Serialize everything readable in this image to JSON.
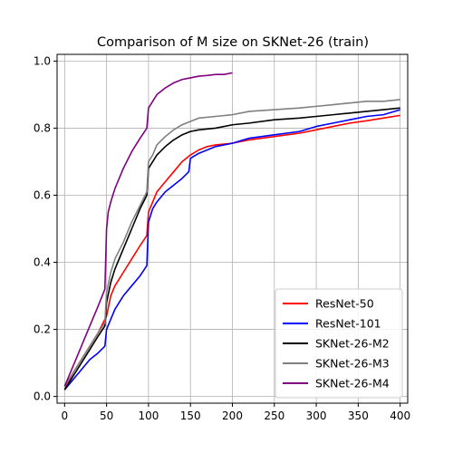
{
  "chart_data": {
    "type": "line",
    "title": "Comparison of M size on SKNet-26 (train)",
    "xlabel": "",
    "ylabel": "",
    "xlim": [
      -9,
      409
    ],
    "ylim": [
      -0.02,
      1.02
    ],
    "xticks": [
      0,
      50,
      100,
      150,
      200,
      250,
      300,
      350,
      400
    ],
    "yticks": [
      0.0,
      0.2,
      0.4,
      0.6,
      0.8,
      1.0
    ],
    "xtick_labels": [
      "0",
      "50",
      "100",
      "150",
      "200",
      "250",
      "300",
      "350",
      "400"
    ],
    "ytick_labels": [
      "0.0",
      "0.2",
      "0.4",
      "0.6",
      "0.8",
      "1.0"
    ],
    "grid": true,
    "legend_position": "lower-right",
    "series": [
      {
        "name": "ResNet-50",
        "color": "#ff0000",
        "points": [
          [
            0,
            0.02
          ],
          [
            10,
            0.07
          ],
          [
            20,
            0.11
          ],
          [
            30,
            0.15
          ],
          [
            40,
            0.19
          ],
          [
            50,
            0.24
          ],
          [
            55,
            0.3
          ],
          [
            60,
            0.33
          ],
          [
            70,
            0.37
          ],
          [
            80,
            0.41
          ],
          [
            90,
            0.45
          ],
          [
            98,
            0.48
          ],
          [
            100,
            0.55
          ],
          [
            105,
            0.58
          ],
          [
            110,
            0.61
          ],
          [
            120,
            0.64
          ],
          [
            130,
            0.67
          ],
          [
            140,
            0.7
          ],
          [
            150,
            0.72
          ],
          [
            160,
            0.735
          ],
          [
            170,
            0.745
          ],
          [
            180,
            0.75
          ],
          [
            200,
            0.755
          ],
          [
            220,
            0.765
          ],
          [
            250,
            0.775
          ],
          [
            280,
            0.785
          ],
          [
            300,
            0.795
          ],
          [
            320,
            0.805
          ],
          [
            340,
            0.815
          ],
          [
            360,
            0.822
          ],
          [
            380,
            0.83
          ],
          [
            400,
            0.838
          ]
        ]
      },
      {
        "name": "ResNet-101",
        "color": "#0000ff",
        "points": [
          [
            0,
            0.02
          ],
          [
            10,
            0.05
          ],
          [
            20,
            0.08
          ],
          [
            30,
            0.11
          ],
          [
            40,
            0.13
          ],
          [
            48,
            0.15
          ],
          [
            50,
            0.2
          ],
          [
            55,
            0.23
          ],
          [
            60,
            0.26
          ],
          [
            70,
            0.3
          ],
          [
            80,
            0.33
          ],
          [
            90,
            0.36
          ],
          [
            98,
            0.39
          ],
          [
            100,
            0.52
          ],
          [
            105,
            0.56
          ],
          [
            110,
            0.58
          ],
          [
            120,
            0.61
          ],
          [
            130,
            0.63
          ],
          [
            140,
            0.65
          ],
          [
            148,
            0.67
          ],
          [
            150,
            0.71
          ],
          [
            160,
            0.725
          ],
          [
            170,
            0.735
          ],
          [
            180,
            0.745
          ],
          [
            200,
            0.755
          ],
          [
            220,
            0.77
          ],
          [
            250,
            0.78
          ],
          [
            280,
            0.79
          ],
          [
            300,
            0.805
          ],
          [
            320,
            0.815
          ],
          [
            340,
            0.825
          ],
          [
            360,
            0.835
          ],
          [
            380,
            0.84
          ],
          [
            400,
            0.855
          ]
        ]
      },
      {
        "name": "SKNet-26-M2",
        "color": "#000000",
        "points": [
          [
            0,
            0.02
          ],
          [
            10,
            0.06
          ],
          [
            20,
            0.1
          ],
          [
            30,
            0.14
          ],
          [
            40,
            0.18
          ],
          [
            48,
            0.21
          ],
          [
            50,
            0.28
          ],
          [
            55,
            0.34
          ],
          [
            60,
            0.38
          ],
          [
            70,
            0.44
          ],
          [
            80,
            0.5
          ],
          [
            90,
            0.56
          ],
          [
            98,
            0.6
          ],
          [
            100,
            0.68
          ],
          [
            105,
            0.7
          ],
          [
            110,
            0.72
          ],
          [
            120,
            0.745
          ],
          [
            130,
            0.765
          ],
          [
            140,
            0.78
          ],
          [
            150,
            0.79
          ],
          [
            160,
            0.795
          ],
          [
            180,
            0.8
          ],
          [
            200,
            0.81
          ],
          [
            220,
            0.815
          ],
          [
            250,
            0.825
          ],
          [
            280,
            0.83
          ],
          [
            300,
            0.835
          ],
          [
            320,
            0.84
          ],
          [
            340,
            0.845
          ],
          [
            360,
            0.85
          ],
          [
            380,
            0.855
          ],
          [
            400,
            0.86
          ]
        ]
      },
      {
        "name": "SKNet-26-M3",
        "color": "#808080",
        "points": [
          [
            0,
            0.03
          ],
          [
            10,
            0.07
          ],
          [
            20,
            0.11
          ],
          [
            30,
            0.15
          ],
          [
            40,
            0.19
          ],
          [
            48,
            0.22
          ],
          [
            50,
            0.31
          ],
          [
            55,
            0.37
          ],
          [
            60,
            0.41
          ],
          [
            70,
            0.46
          ],
          [
            80,
            0.52
          ],
          [
            90,
            0.57
          ],
          [
            98,
            0.61
          ],
          [
            100,
            0.7
          ],
          [
            105,
            0.72
          ],
          [
            110,
            0.75
          ],
          [
            120,
            0.775
          ],
          [
            130,
            0.795
          ],
          [
            140,
            0.81
          ],
          [
            150,
            0.82
          ],
          [
            160,
            0.83
          ],
          [
            180,
            0.835
          ],
          [
            200,
            0.84
          ],
          [
            220,
            0.85
          ],
          [
            250,
            0.855
          ],
          [
            280,
            0.86
          ],
          [
            300,
            0.865
          ],
          [
            320,
            0.87
          ],
          [
            340,
            0.875
          ],
          [
            360,
            0.88
          ],
          [
            380,
            0.88
          ],
          [
            400,
            0.885
          ]
        ]
      },
      {
        "name": "SKNet-26-M4",
        "color": "#800080",
        "points": [
          [
            0,
            0.03
          ],
          [
            10,
            0.09
          ],
          [
            20,
            0.15
          ],
          [
            30,
            0.21
          ],
          [
            40,
            0.27
          ],
          [
            48,
            0.32
          ],
          [
            50,
            0.5
          ],
          [
            52,
            0.55
          ],
          [
            55,
            0.58
          ],
          [
            60,
            0.62
          ],
          [
            70,
            0.68
          ],
          [
            80,
            0.73
          ],
          [
            90,
            0.77
          ],
          [
            98,
            0.8
          ],
          [
            100,
            0.86
          ],
          [
            105,
            0.88
          ],
          [
            110,
            0.9
          ],
          [
            120,
            0.92
          ],
          [
            130,
            0.935
          ],
          [
            140,
            0.945
          ],
          [
            150,
            0.95
          ],
          [
            160,
            0.955
          ],
          [
            170,
            0.957
          ],
          [
            180,
            0.96
          ],
          [
            190,
            0.96
          ],
          [
            200,
            0.965
          ]
        ]
      }
    ]
  }
}
